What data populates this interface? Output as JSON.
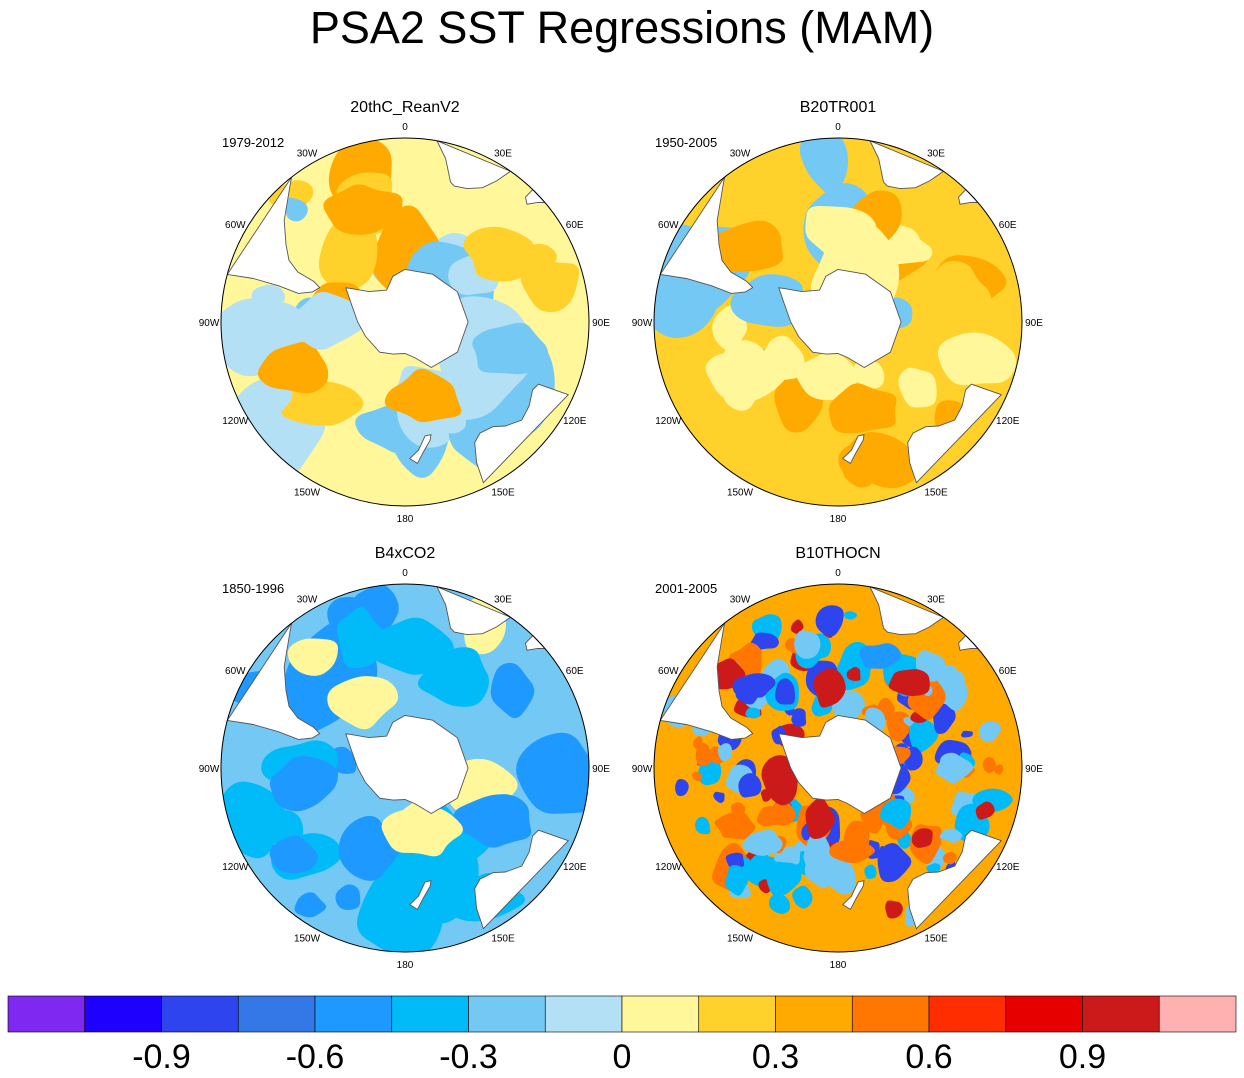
{
  "title": "PSA2 SST Regressions (MAM)",
  "chart_data": [
    {
      "type": "heatmap",
      "projection": "south-polar-stereographic",
      "title": "20thC_ReanV2",
      "period": "1979-2012",
      "longitude_labels": [
        "0",
        "30E",
        "60E",
        "90E",
        "120E",
        "150E",
        "180",
        "150W",
        "120W",
        "90W",
        "60W",
        "30W"
      ],
      "colorbar_ref": "shared",
      "dominant_values": [
        0,
        0.15,
        -0.15,
        -0.3,
        0.3
      ],
      "regions": [
        {
          "center_lon": -135,
          "center_lat": -45,
          "value": 0.15
        },
        {
          "center_lon": -112,
          "center_lat": -44,
          "value": 0.3
        },
        {
          "center_lon": -20,
          "center_lat": -45,
          "value": 0.3
        },
        {
          "center_lon": 55,
          "center_lat": -45,
          "value": 0.15
        },
        {
          "center_lon": 165,
          "center_lat": -60,
          "value": 0.3
        },
        {
          "center_lon": 105,
          "center_lat": -50,
          "value": -0.3
        },
        {
          "center_lon": -90,
          "center_lat": -60,
          "value": -0.15
        }
      ]
    },
    {
      "type": "heatmap",
      "projection": "south-polar-stereographic",
      "title": "B20TR001",
      "period": "1950-2005",
      "longitude_labels": [
        "0",
        "30E",
        "60E",
        "90E",
        "120E",
        "150E",
        "180",
        "150W",
        "120W",
        "90W",
        "60W",
        "30W"
      ],
      "colorbar_ref": "shared",
      "dominant_values": [
        0.15,
        0,
        0.3,
        -0.3
      ],
      "regions": [
        {
          "center_lon": 165,
          "center_lat": -55,
          "value": 0.3
        },
        {
          "center_lon": -120,
          "center_lat": -50,
          "value": 0
        },
        {
          "center_lon": 0,
          "center_lat": -55,
          "value": 0
        },
        {
          "center_lon": 75,
          "center_lat": -45,
          "value": 0.15
        },
        {
          "center_lon": -50,
          "center_lat": -45,
          "value": 0.3
        },
        {
          "center_lon": -75,
          "center_lat": -62,
          "value": -0.3
        }
      ]
    },
    {
      "type": "heatmap",
      "projection": "south-polar-stereographic",
      "title": "B4xCO2",
      "period": "1850-1996",
      "longitude_labels": [
        "0",
        "30E",
        "60E",
        "90E",
        "120E",
        "150E",
        "180",
        "150W",
        "120W",
        "90W",
        "60W",
        "30W"
      ],
      "colorbar_ref": "shared",
      "dominant_values": [
        -0.3,
        -0.45,
        -0.6,
        0
      ],
      "regions": [
        {
          "center_lon": -90,
          "center_lat": -50,
          "value": -0.45
        },
        {
          "center_lon": 120,
          "center_lat": -50,
          "value": -0.6
        },
        {
          "center_lon": -100,
          "center_lat": -50,
          "value": -0.6
        },
        {
          "center_lon": 165,
          "center_lat": -65,
          "value": 0
        },
        {
          "center_lon": 30,
          "center_lat": -50,
          "value": -0.45
        }
      ]
    },
    {
      "type": "heatmap",
      "projection": "south-polar-stereographic",
      "title": "B10THOCN",
      "period": "2001-2005",
      "longitude_labels": [
        "0",
        "30E",
        "60E",
        "90E",
        "120E",
        "150E",
        "180",
        "150W",
        "120W",
        "90W",
        "60W",
        "30W"
      ],
      "colorbar_ref": "shared",
      "dominant_values": [
        0.3,
        0.45,
        -0.3,
        -0.45,
        -0.9,
        0.9
      ],
      "regions": [
        {
          "center_lon": 170,
          "center_lat": -58,
          "value": 0.45
        },
        {
          "center_lon": -135,
          "center_lat": -50,
          "value": -0.3
        },
        {
          "center_lon": 90,
          "center_lat": -45,
          "value": -0.3
        },
        {
          "center_lon": 20,
          "center_lat": -45,
          "value": -0.6
        },
        {
          "center_lon": -45,
          "center_lat": -45,
          "value": -0.9
        },
        {
          "center_lon": 40,
          "center_lat": -48,
          "value": 0.9
        },
        {
          "center_lon": -120,
          "center_lat": -45,
          "value": 0.45
        }
      ]
    }
  ],
  "colorbar": {
    "levels": [
      -1.05,
      -0.9,
      -0.75,
      -0.6,
      -0.45,
      -0.3,
      -0.15,
      0,
      0.15,
      0.3,
      0.45,
      0.6,
      0.75,
      0.9,
      1.05
    ],
    "colors": [
      "#7f28f0",
      "#1e00ff",
      "#2e44ee",
      "#3478e8",
      "#1e99ff",
      "#00bbf8",
      "#74c8f4",
      "#b4e0f5",
      "#fff799",
      "#ffd12a",
      "#ffaa00",
      "#ff7700",
      "#ff2d00",
      "#e60000",
      "#cc1a1a",
      "#ffb1b1"
    ],
    "tick_labels": [
      "-0.9",
      "-0.6",
      "-0.3",
      "0",
      "0.3",
      "0.6",
      "0.9"
    ],
    "tick_values": [
      -0.9,
      -0.6,
      -0.3,
      0,
      0.3,
      0.6,
      0.9
    ]
  }
}
